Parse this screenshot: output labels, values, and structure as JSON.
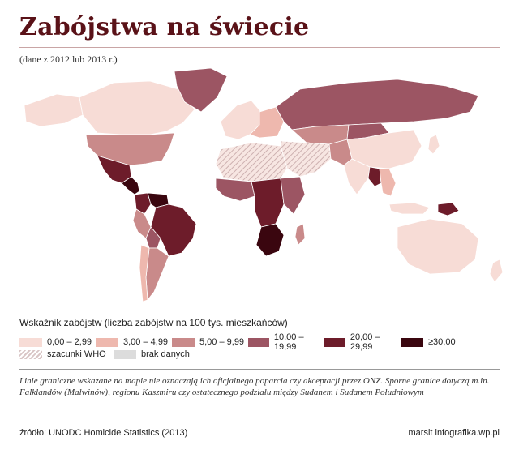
{
  "header": {
    "title": "Zabójstwa na świecie",
    "subtitle": "(dane z 2012 lub 2013 r.)"
  },
  "legend": {
    "title": "Wskaźnik zabójstw (liczba zabójstw na 100 tys. mieszkańców)",
    "classes": [
      {
        "label": "0,00 – 2,99",
        "color": "#f7dcd6"
      },
      {
        "label": "3,00 – 4,99",
        "color": "#eeb8ae"
      },
      {
        "label": "5,00 – 9,99",
        "color": "#c98a8a"
      },
      {
        "label": "10,00 – 19,99",
        "color": "#9c5563"
      },
      {
        "label": "20,00 – 29,99",
        "color": "#6d1c2a"
      },
      {
        "label": "≥30,00",
        "color": "#3a060f"
      }
    ],
    "extra": [
      {
        "label": "szacunki WHO",
        "pattern": "hatch",
        "color": "#d9c6c6"
      },
      {
        "label": "brak danych",
        "color": "#dcdcdc"
      }
    ]
  },
  "regions": [
    {
      "name": "Kanada",
      "class": 0
    },
    {
      "name": "Alaska",
      "class": 0
    },
    {
      "name": "Grenlandia",
      "class": 3
    },
    {
      "name": "USA",
      "class": 2
    },
    {
      "name": "Meksyk",
      "class": 4
    },
    {
      "name": "Ameryka Środkowa",
      "class": 5
    },
    {
      "name": "Wenezuela",
      "class": 5
    },
    {
      "name": "Kolumbia",
      "class": 4
    },
    {
      "name": "Brazylia",
      "class": 4
    },
    {
      "name": "Peru",
      "class": 2
    },
    {
      "name": "Boliwia",
      "class": 3
    },
    {
      "name": "Argentyna",
      "class": 2
    },
    {
      "name": "Chile",
      "class": 1
    },
    {
      "name": "Europa Zachodnia",
      "class": 0
    },
    {
      "name": "Europa Wschodnia",
      "class": 1
    },
    {
      "name": "Rosja",
      "class": 3
    },
    {
      "name": "Kazachstan",
      "class": 2
    },
    {
      "name": "Afryka Północna",
      "class": 0,
      "who_estimate": true
    },
    {
      "name": "Afryka Zachodnia",
      "class": 3
    },
    {
      "name": "Afryka Środkowa",
      "class": 4
    },
    {
      "name": "Afryka Wschodnia",
      "class": 3
    },
    {
      "name": "RPA",
      "class": 5
    },
    {
      "name": "Madagaskar",
      "class": 2
    },
    {
      "name": "Bliski Wschód",
      "class": 0,
      "who_estimate": true
    },
    {
      "name": "Indie",
      "class": 0
    },
    {
      "name": "Chiny",
      "class": 0
    },
    {
      "name": "Mongolia",
      "class": 3
    },
    {
      "name": "Azja Południowo-Wschodnia",
      "class": 1
    },
    {
      "name": "Mjanma",
      "class": 4
    },
    {
      "name": "Indonezja",
      "class": 0
    },
    {
      "name": "Papua-Nowa Gwinea",
      "class": 4
    },
    {
      "name": "Australia",
      "class": 0
    },
    {
      "name": "Nowa Zelandia",
      "class": 0
    },
    {
      "name": "Japonia",
      "class": 0
    },
    {
      "name": "Pakistan/Afganistan",
      "class": 2
    }
  ],
  "footer": {
    "note": "Linie graniczne wskazane na mapie nie oznaczają ich oficjalnego poparcia czy akceptacji przez ONZ. Sporne granice dotyczą m.in. Falklandów (Malwinów), regionu Kaszmiru czy ostatecznego podziału między Sudanem i Sudanem Południowym",
    "source": "źródło: UNODC Homicide Statistics (2013)",
    "credit": "marsit infografika.wp.pl"
  }
}
